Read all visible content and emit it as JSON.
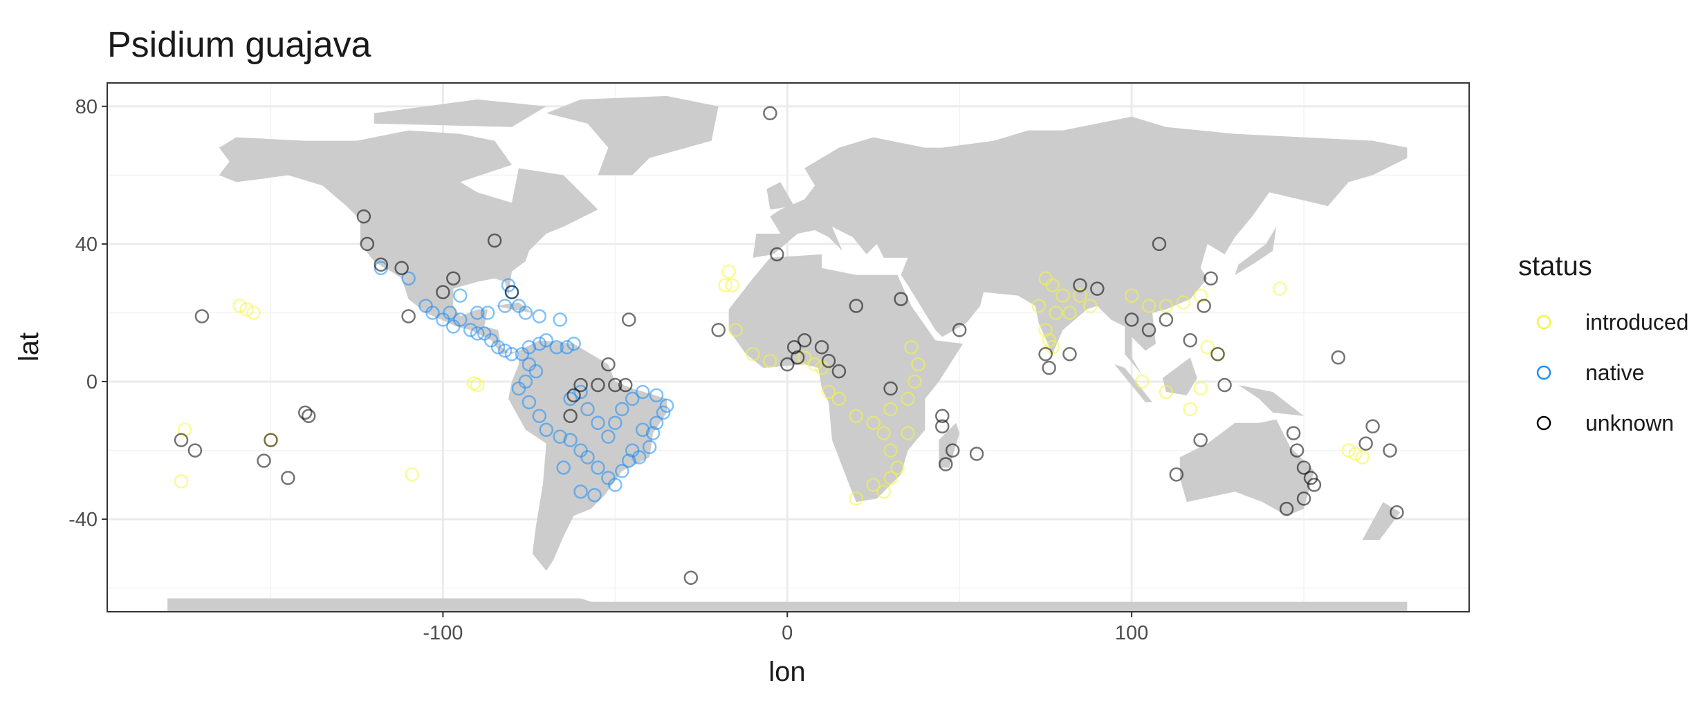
{
  "chart_data": {
    "type": "scatter",
    "title": "Psidium guajava",
    "x_label": "lon",
    "y_label": "lat",
    "legend_title": "status",
    "legend_position": "right",
    "grid": true,
    "xlim": [
      -197.5,
      198
    ],
    "ylim": [
      -66.9,
      86.8
    ],
    "xticks": [
      -100,
      0,
      100
    ],
    "yticks": [
      -40,
      0,
      40,
      80
    ],
    "xminor": [
      -150,
      -50,
      50,
      150
    ],
    "yminor": [
      -60,
      -20,
      20,
      60
    ],
    "series": [
      {
        "name": "introduced",
        "color": "#f5f53b",
        "x": [
          -157,
          -159,
          -155,
          -150,
          -175,
          -176,
          -90,
          -91,
          -109,
          -16,
          -17,
          -15,
          -10,
          -5,
          5,
          8,
          10,
          12,
          15,
          20,
          25,
          28,
          30,
          32,
          35,
          35,
          37,
          38,
          36,
          30,
          25,
          20,
          28,
          30,
          75,
          77,
          80,
          78,
          75,
          77,
          82,
          85,
          88,
          73,
          76,
          100,
          105,
          110,
          115,
          120,
          103,
          110,
          117,
          120,
          122,
          125,
          165,
          167,
          163,
          143,
          -18
        ],
        "y": [
          21,
          22,
          20,
          -17,
          -14,
          -29,
          -1,
          -0.5,
          -27,
          28,
          32,
          15,
          8,
          6,
          7,
          5,
          4,
          -3,
          -5,
          -10,
          -12,
          -15,
          -20,
          -25,
          -15,
          -5,
          0,
          5,
          10,
          -8,
          -30,
          -34,
          -32,
          -28,
          30,
          28,
          25,
          20,
          15,
          10,
          20,
          25,
          22,
          22,
          12,
          25,
          22,
          22,
          23,
          25,
          0,
          -3,
          -8,
          -2,
          10,
          8,
          -21,
          -22,
          -20,
          27,
          28
        ]
      },
      {
        "name": "native",
        "color": "#1c8ef5",
        "x": [
          -118,
          -110,
          -105,
          -103,
          -100,
          -98,
          -97,
          -95,
          -92,
          -90,
          -88,
          -86,
          -84,
          -82,
          -80,
          -77,
          -75,
          -72,
          -70,
          -67,
          -64,
          -62,
          -66,
          -72,
          -76,
          -78,
          -82,
          -80,
          -81,
          -75,
          -73,
          -76,
          -78,
          -75,
          -72,
          -70,
          -66,
          -63,
          -60,
          -58,
          -55,
          -52,
          -50,
          -48,
          -46,
          -43,
          -40,
          -39,
          -38,
          -36,
          -35,
          -38,
          -42,
          -45,
          -48,
          -50,
          -52,
          -55,
          -58,
          -60,
          -63,
          -65,
          -60,
          -56,
          -45,
          -42,
          -95,
          -90,
          -87
        ],
        "y": [
          33,
          30,
          22,
          20,
          18,
          20,
          16,
          18,
          15,
          14,
          14,
          12,
          10,
          9,
          8,
          8,
          10,
          11,
          12,
          10,
          10,
          11,
          18,
          19,
          20,
          22,
          22,
          26,
          28,
          5,
          3,
          0,
          -2,
          -6,
          -10,
          -14,
          -16,
          -17,
          -20,
          -22,
          -25,
          -28,
          -30,
          -26,
          -23,
          -22,
          -19,
          -15,
          -12,
          -9,
          -7,
          -4,
          -3,
          -5,
          -8,
          -12,
          -16,
          -12,
          -8,
          -3,
          -5,
          -25,
          -32,
          -33,
          -20,
          -14,
          25,
          20,
          20
        ]
      },
      {
        "name": "unknown",
        "color": "#000000",
        "x": [
          -123,
          -122,
          -118,
          -112,
          -100,
          -97,
          -110,
          -80,
          -85,
          -60,
          -62,
          -55,
          -50,
          -52,
          -47,
          -63,
          -170,
          -176,
          -172,
          -150,
          -152,
          -145,
          -140,
          -139,
          -46,
          -28,
          -5,
          -3,
          -20,
          0,
          2,
          5,
          3,
          10,
          12,
          15,
          20,
          30,
          33,
          45,
          48,
          46,
          55,
          50,
          45,
          75,
          76,
          82,
          85,
          90,
          100,
          105,
          108,
          110,
          117,
          121,
          123,
          125,
          127,
          120,
          113,
          147,
          148,
          150,
          152,
          153,
          150,
          145,
          170,
          175,
          177,
          160,
          168
        ],
        "y": [
          48,
          40,
          34,
          33,
          26,
          30,
          19,
          26,
          41,
          -1,
          -4,
          -1,
          -1,
          5,
          -1,
          -10,
          19,
          -17,
          -20,
          -17,
          -23,
          -28,
          -9,
          -10,
          18,
          -57,
          78,
          37,
          15,
          5,
          10,
          12,
          7,
          10,
          6,
          3,
          22,
          -2,
          24,
          -13,
          -20,
          -24,
          -21,
          15,
          -10,
          8,
          4,
          8,
          28,
          27,
          18,
          15,
          40,
          18,
          12,
          22,
          30,
          8,
          -1,
          -17,
          -27,
          -15,
          -20,
          -25,
          -28,
          -30,
          -34,
          -37,
          -13,
          -20,
          -38,
          7,
          -18
        ]
      }
    ]
  }
}
